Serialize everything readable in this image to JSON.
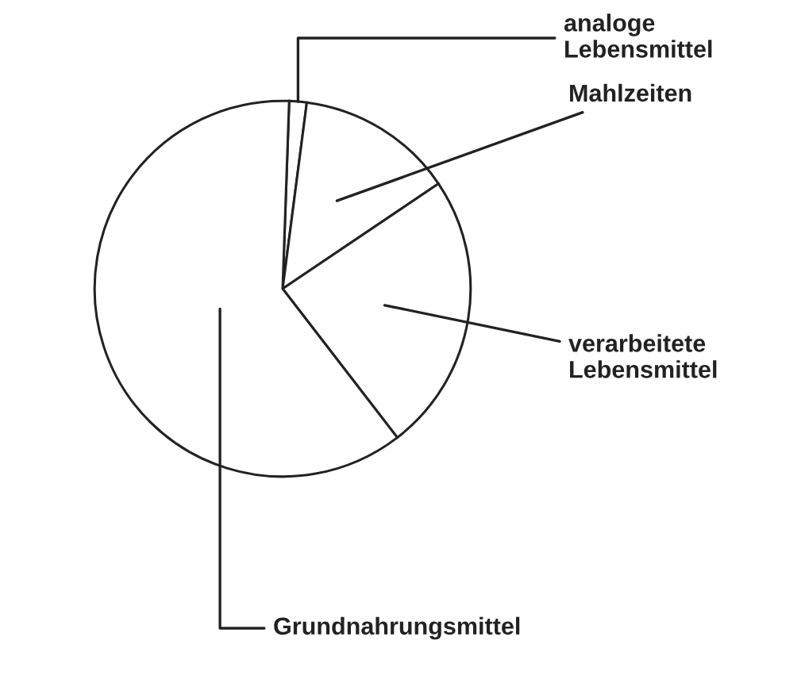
{
  "chart_data": {
    "type": "pie",
    "categories": [
      "analoge\nLebensmittel",
      "Mahlzeiten",
      "verarbeitete\nLebensmittel",
      "Grundnahrungsmittel"
    ],
    "values": [
      1.5,
      13.5,
      24,
      61
    ],
    "colors": [
      "#ffffff",
      "#ffffff",
      "#ffffff",
      "#ffffff"
    ]
  }
}
